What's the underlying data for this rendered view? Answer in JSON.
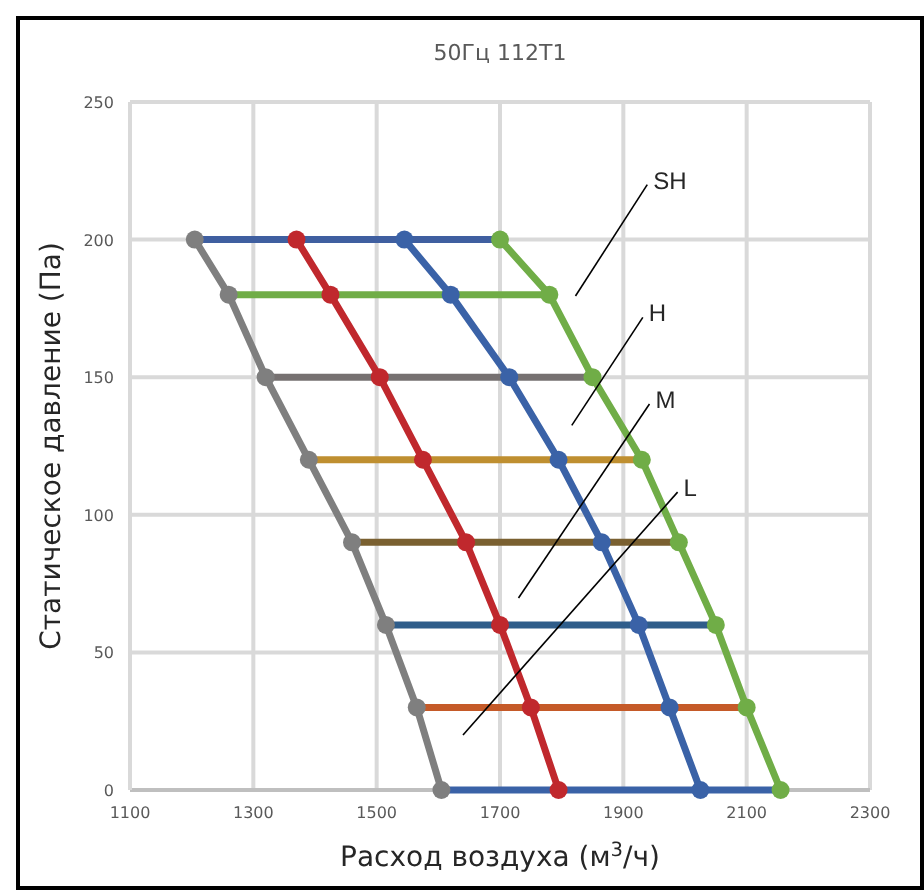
{
  "chart_data": {
    "type": "line",
    "title": "50Гц 112T1",
    "xlabel": "Расход воздуха (м$^{3}$/ч)",
    "ylabel": "Статическое давление (Па)",
    "xlim": [
      1100,
      2300
    ],
    "xticks": [
      1100,
      1300,
      1500,
      1700,
      1900,
      2100,
      2300
    ],
    "ylim": [
      0,
      250
    ],
    "yticks": [
      0,
      50,
      100,
      150,
      200,
      250
    ],
    "grid": true,
    "line_style": "solid",
    "series": [
      {
        "color": "#3f5fa0",
        "x": [
          1205,
          1700
        ],
        "values": [
          200,
          200
        ]
      },
      {
        "color": "#70ad47",
        "x": [
          1260,
          1780
        ],
        "values": [
          180,
          180
        ]
      },
      {
        "color": "#767171",
        "x": [
          1320,
          1850
        ],
        "values": [
          150,
          150
        ]
      },
      {
        "color": "#bf8f30",
        "x": [
          1390,
          1930
        ],
        "values": [
          120,
          120
        ]
      },
      {
        "color": "#7a6030",
        "x": [
          1460,
          1990
        ],
        "values": [
          90,
          90
        ]
      },
      {
        "color": "#2f5d8a",
        "x": [
          1515,
          2050
        ],
        "values": [
          60,
          60
        ]
      },
      {
        "color": "#c55a28",
        "x": [
          1565,
          2100
        ],
        "values": [
          30,
          30
        ]
      },
      {
        "color": "#3a62a7",
        "x": [
          1605,
          2155
        ],
        "values": [
          0,
          0
        ]
      },
      {
        "color": "#7f7f7f",
        "marker": "circle",
        "x": [
          1205,
          1260,
          1320,
          1390,
          1460,
          1515,
          1565,
          1605
        ],
        "values": [
          200,
          180,
          150,
          120,
          90,
          60,
          30,
          0
        ]
      },
      {
        "color": "#c0282d",
        "marker": "circle",
        "x": [
          1370,
          1425,
          1505,
          1575,
          1645,
          1700,
          1750,
          1795
        ],
        "values": [
          200,
          180,
          150,
          120,
          90,
          60,
          30,
          0
        ]
      },
      {
        "color": "#3a62a7",
        "marker": "circle",
        "x": [
          1545,
          1620,
          1715,
          1795,
          1865,
          1925,
          1975,
          2025
        ],
        "values": [
          200,
          180,
          150,
          120,
          90,
          60,
          30,
          0
        ]
      },
      {
        "color": "#70ad47",
        "marker": "circle",
        "x": [
          1700,
          1780,
          1850,
          1930,
          1990,
          2050,
          2100,
          2155
        ],
        "values": [
          200,
          180,
          150,
          120,
          90,
          60,
          30,
          0
        ]
      }
    ],
    "annotations": [
      "SH",
      "H",
      "M",
      "L"
    ]
  }
}
